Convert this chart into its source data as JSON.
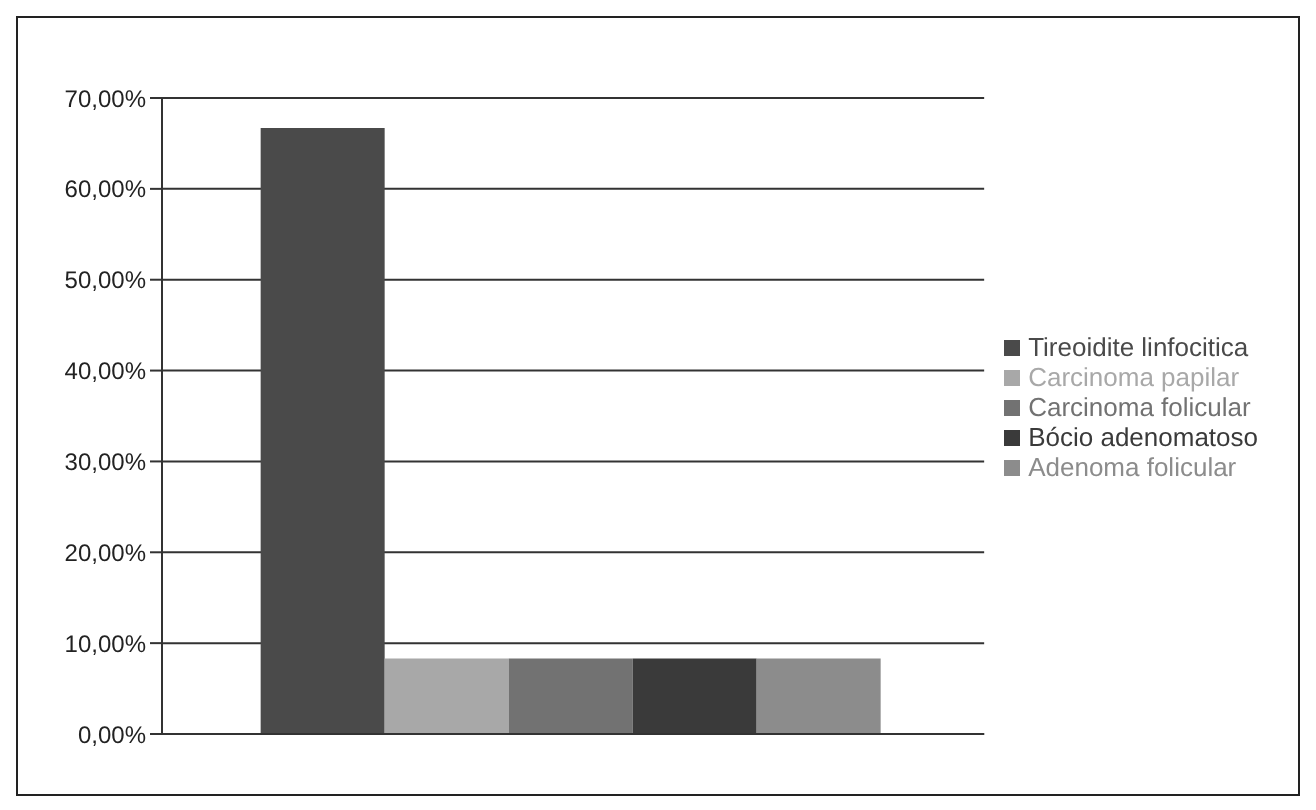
{
  "chart_data": {
    "type": "bar",
    "categories": [
      null
    ],
    "series": [
      {
        "name": "Tireoidite linfocitica",
        "color": "#4a4a4a",
        "values": [
          66.7
        ]
      },
      {
        "name": "Carcinoma papilar",
        "color": "#a8a8a8",
        "values": [
          8.3
        ]
      },
      {
        "name": "Carcinoma folicular",
        "color": "#727272",
        "values": [
          8.3
        ]
      },
      {
        "name": "Bócio adenomatoso",
        "color": "#3a3a3a",
        "values": [
          8.3
        ]
      },
      {
        "name": "Adenoma folicular",
        "color": "#8c8c8c",
        "values": [
          8.3
        ]
      }
    ],
    "ylim": [
      0,
      70
    ],
    "yticks": [
      {
        "value": 0,
        "label": "0,00%"
      },
      {
        "value": 10,
        "label": "10,00%"
      },
      {
        "value": 20,
        "label": "20,00%"
      },
      {
        "value": 30,
        "label": "30,00%"
      },
      {
        "value": 40,
        "label": "40,00%"
      },
      {
        "value": 50,
        "label": "50,00%"
      },
      {
        "value": 60,
        "label": "60,00%"
      },
      {
        "value": 70,
        "label": "70,00%"
      }
    ],
    "grid": "y",
    "legend": "right"
  }
}
